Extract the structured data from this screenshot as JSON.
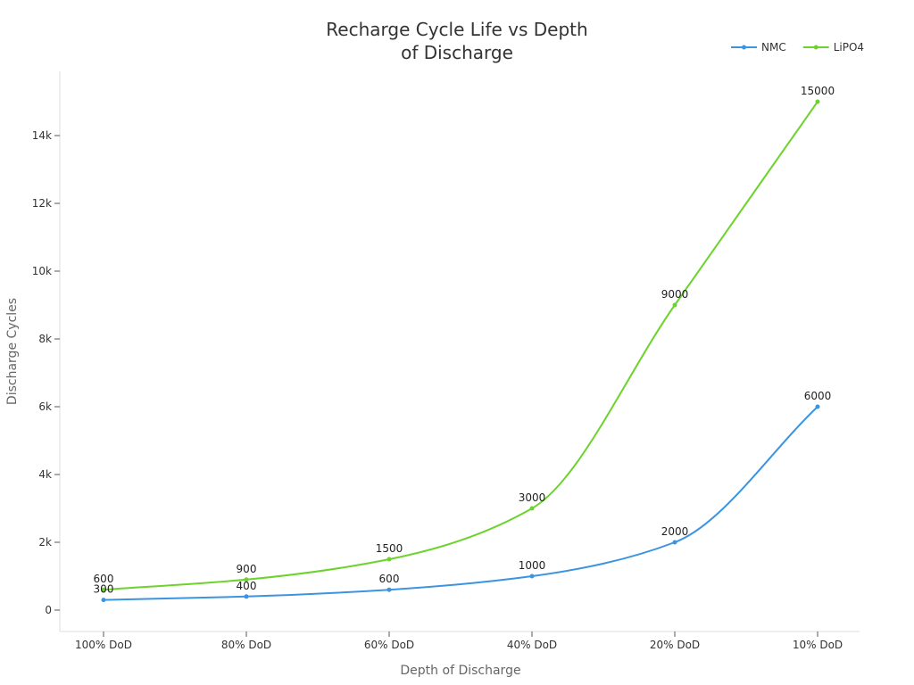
{
  "chart_data": {
    "type": "line",
    "title_lines": [
      "Recharge Cycle Life vs Depth",
      "of Discharge"
    ],
    "xlabel": "Depth of Discharge",
    "ylabel": "Discharge Cycles",
    "categories": [
      "100% DoD",
      "80% DoD",
      "60% DoD",
      "40% DoD",
      "20% DoD",
      "10% DoD"
    ],
    "y_ticks": [
      0,
      2000,
      4000,
      6000,
      8000,
      10000,
      12000,
      14000
    ],
    "y_tick_labels": [
      "0",
      "2k",
      "4k",
      "6k",
      "8k",
      "10k",
      "12k",
      "14k"
    ],
    "ylim": [
      -600,
      15700
    ],
    "grid": false,
    "legend_position": "top-right",
    "series": [
      {
        "name": "NMC",
        "color": "#3b94e0",
        "values": [
          300,
          400,
          600,
          1000,
          2000,
          6000
        ]
      },
      {
        "name": "LiPO4",
        "color": "#6cd32c",
        "values": [
          600,
          900,
          1500,
          3000,
          9000,
          15000
        ]
      }
    ]
  }
}
